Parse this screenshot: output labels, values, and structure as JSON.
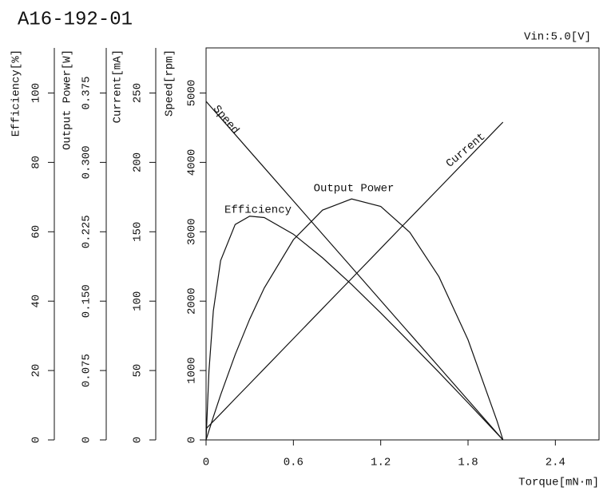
{
  "chart_data": {
    "type": "line",
    "title": "A16-192-01",
    "annotation": "Vin:5.0[V]",
    "xlabel": "Torque[mN·m]",
    "x": [
      0,
      0.02,
      0.05,
      0.1,
      0.2,
      0.3,
      0.4,
      0.6,
      0.8,
      1.0,
      1.2,
      1.4,
      1.6,
      1.8,
      2.0,
      2.04
    ],
    "xlim": [
      0,
      2.7
    ],
    "xticks": [
      0,
      0.6,
      1.2,
      1.8,
      2.4
    ],
    "ylabel": "Speed[rpm]",
    "ylim": [
      0,
      5650
    ],
    "yticks": [
      0,
      1000,
      2000,
      3000,
      4000,
      5000
    ],
    "y2label": "Current[mA]",
    "y2lim": [
      0,
      282.5
    ],
    "y2ticks": [
      0,
      50,
      100,
      150,
      200,
      250
    ],
    "y3label": "Output Power[W]",
    "y3lim": [
      0,
      0.42375
    ],
    "y3ticks": [
      0,
      0.075,
      {
        "value": 0.15,
        "label": "0.150"
      },
      0.225,
      {
        "value": 0.3,
        "label": "0.300"
      },
      0.375
    ],
    "y4label": "Efficiency[%]",
    "y4lim": [
      0,
      113
    ],
    "y4ticks": [
      0,
      20,
      40,
      60,
      80,
      100
    ],
    "series": [
      {
        "name": "Speed",
        "color": "#111111",
        "axis": "y",
        "values": [
          4880,
          4832,
          4760,
          4641,
          4402,
          4162,
          3923,
          3445,
          2966,
          2488,
          2009,
          1531,
          1053,
          574,
          96,
          0
        ]
      },
      {
        "name": "Current",
        "color": "#111111",
        "axis": "y2",
        "values": [
          8,
          10.2,
          13.4,
          18.8,
          29.7,
          40.5,
          51.3,
          73,
          94.7,
          116.3,
          138,
          159.7,
          181.3,
          203,
          224.7,
          229
        ]
      },
      {
        "name": "Output Power",
        "color": "#111111",
        "axis": "y3",
        "values": [
          0,
          0.0101,
          0.0249,
          0.0486,
          0.0922,
          0.1307,
          0.1643,
          0.2164,
          0.2484,
          0.2605,
          0.2524,
          0.2244,
          0.1764,
          0.1082,
          0.0201,
          0
        ]
      },
      {
        "name": "Efficiency",
        "color": "#111111",
        "axis": "y4",
        "values": [
          0,
          19.9,
          37.2,
          51.7,
          62.1,
          64.5,
          64.1,
          59.3,
          52.5,
          44.8,
          36.6,
          28.1,
          19.5,
          10.7,
          1.8,
          0
        ]
      }
    ]
  }
}
